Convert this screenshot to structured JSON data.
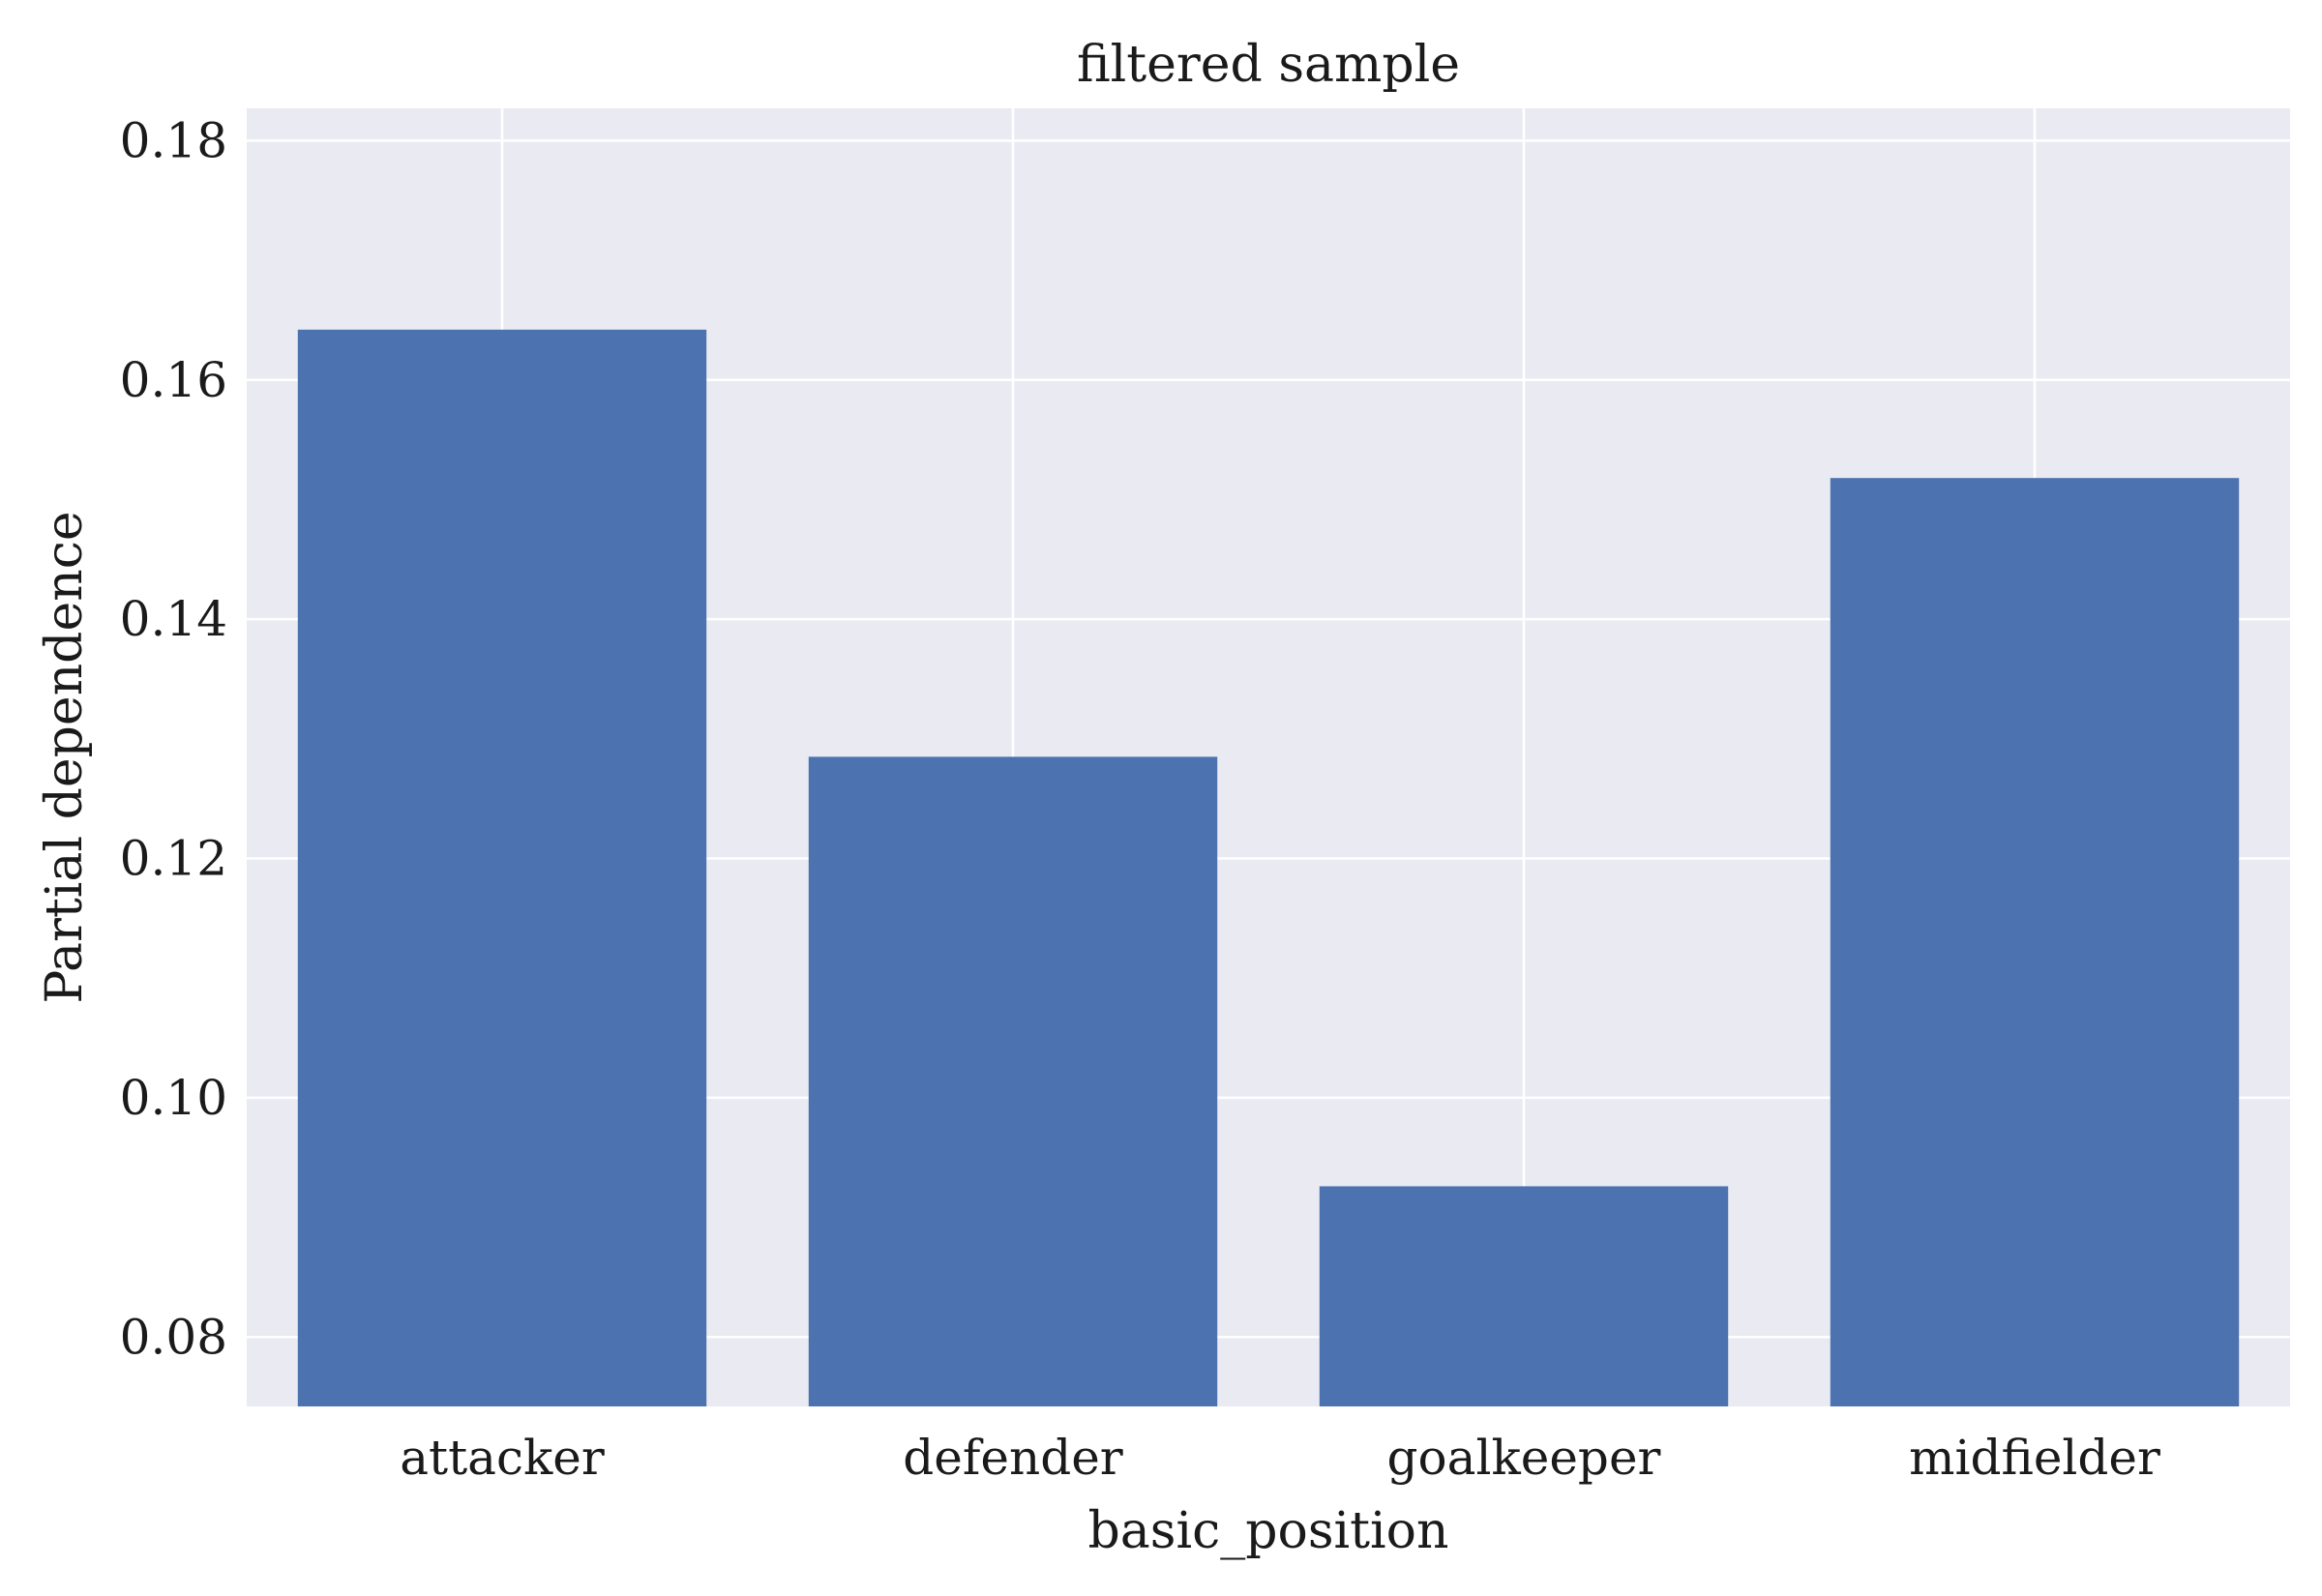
{
  "chart_data": {
    "type": "bar",
    "title": "filtered sample",
    "xlabel": "basic_position",
    "ylabel": "Partial dependence",
    "categories": [
      "attacker",
      "defender",
      "goalkeeper",
      "midfielder"
    ],
    "values": [
      0.1642,
      0.1285,
      0.0926,
      0.1518
    ],
    "ylim": [
      0.0742,
      0.1827
    ],
    "yticks": [
      0.08,
      0.1,
      0.12,
      0.14,
      0.16,
      0.18
    ],
    "ytick_labels": [
      "0.08",
      "0.10",
      "0.12",
      "0.14",
      "0.16",
      "0.18"
    ],
    "grid": true,
    "bar_color": "#4c72b0",
    "background_color": "#eaeaf2",
    "grid_color": "#ffffff"
  }
}
